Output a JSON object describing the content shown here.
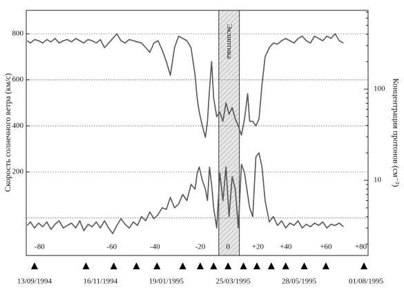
{
  "chart_data": {
    "type": "line",
    "ylabel": "Скорость солнечного ветра (км/с)",
    "y2label": "Концентрация протонов (см⁻³)",
    "xlim": [
      -8,
      324
    ],
    "xticks": [
      {
        "value": 0,
        "label": "13/09/1994"
      },
      {
        "value": 64,
        "label": "16/11/1994"
      },
      {
        "value": 128,
        "label": "19/01/1995"
      },
      {
        "value": 193,
        "label": "25/03/1995"
      },
      {
        "value": 257,
        "label": "28/05/1995"
      },
      {
        "value": 322,
        "label": "01/08/1995"
      }
    ],
    "markers": [
      0,
      50,
      77,
      99,
      119,
      144,
      161,
      174,
      188,
      203,
      216,
      230,
      244,
      262,
      283,
      320
    ],
    "latitude_labels": [
      {
        "value": 5,
        "label": "-80"
      },
      {
        "value": 75,
        "label": "-60"
      },
      {
        "value": 117,
        "label": "-40"
      },
      {
        "value": 161,
        "label": "-20"
      },
      {
        "value": 188,
        "label": "0"
      },
      {
        "value": 217,
        "label": "+20"
      },
      {
        "value": 244,
        "label": "+40"
      },
      {
        "value": 283,
        "label": "+60"
      },
      {
        "value": 317,
        "label": "+80"
      }
    ],
    "ecliptic": {
      "label": "Эклиптика",
      "range": [
        179,
        199
      ]
    },
    "ylim": [
      -163,
      902
    ],
    "yticks": [
      200,
      400,
      600,
      800
    ],
    "ygrid": [
      0,
      200,
      400,
      600,
      800
    ],
    "y2lim": [
      1.5,
      730
    ],
    "y2log": true,
    "y2ticks": [
      10,
      100
    ],
    "y2minor": [
      2,
      3,
      4,
      5,
      6,
      7,
      8,
      9,
      20,
      30,
      40,
      50,
      60,
      70,
      80,
      90,
      200,
      300,
      400,
      500,
      600,
      700
    ],
    "x": [
      -7,
      -4,
      0,
      4,
      8,
      12,
      16,
      20,
      24,
      28,
      32,
      36,
      40,
      44,
      48,
      52,
      56,
      60,
      64,
      68,
      72,
      76,
      80,
      84,
      88,
      92,
      96,
      100,
      104,
      108,
      112,
      116,
      120,
      124,
      128,
      132,
      136,
      140,
      144,
      148,
      152,
      156,
      158,
      160,
      163,
      166,
      168,
      170,
      172,
      174,
      177,
      180,
      183,
      186,
      189,
      192,
      195,
      198,
      201,
      204,
      207,
      209,
      212,
      215,
      218,
      221,
      224,
      228,
      232,
      236,
      240,
      244,
      248,
      252,
      256,
      260,
      264,
      268,
      272,
      276,
      280,
      284,
      288,
      292,
      296,
      300
    ],
    "series": [
      {
        "color": "#555555",
        "values": [
          770,
          760,
          775,
          770,
          760,
          775,
          765,
          780,
          760,
          770,
          775,
          765,
          780,
          770,
          760,
          775,
          770,
          760,
          775,
          740,
          760,
          780,
          800,
          770,
          760,
          775,
          770,
          765,
          760,
          740,
          720,
          760,
          770,
          730,
          680,
          620,
          740,
          790,
          780,
          770,
          740,
          620,
          520,
          460,
          400,
          350,
          420,
          560,
          680,
          520,
          440,
          460,
          420,
          500,
          450,
          480,
          430,
          400,
          360,
          430,
          540,
          420,
          420,
          400,
          430,
          580,
          700,
          740,
          760,
          755,
          770,
          780,
          770,
          760,
          780,
          790,
          770,
          760,
          790,
          780,
          770,
          790,
          780,
          800,
          770,
          760
        ]
      },
      {
        "color": "#555555",
        "axis": "y2",
        "values": [
          3.2,
          3.5,
          3.0,
          3.4,
          3.1,
          3.5,
          2.9,
          3.3,
          3.6,
          3.0,
          3.2,
          3.4,
          3.0,
          3.6,
          2.8,
          3.3,
          3.1,
          3.5,
          3.0,
          3.6,
          3.0,
          2.6,
          3.2,
          3.8,
          3.3,
          3.0,
          3.5,
          3.2,
          4.0,
          3.6,
          4.5,
          3.8,
          4.2,
          5.0,
          4.8,
          6.5,
          5.0,
          5.5,
          7.0,
          6.0,
          9.0,
          8.0,
          12,
          14,
          10,
          8,
          6,
          14,
          9,
          5,
          3,
          12,
          6,
          14,
          4,
          11,
          8,
          3,
          15,
          12,
          7,
          5,
          4,
          18,
          20,
          14,
          6,
          3.5,
          4,
          3.2,
          3.6,
          3.0,
          3.4,
          3.2,
          3.6,
          3.0,
          3.3,
          3.1,
          3.4,
          3.2,
          3.5,
          3.0,
          3.3,
          3.2,
          3.4,
          3.1
        ]
      }
    ]
  }
}
